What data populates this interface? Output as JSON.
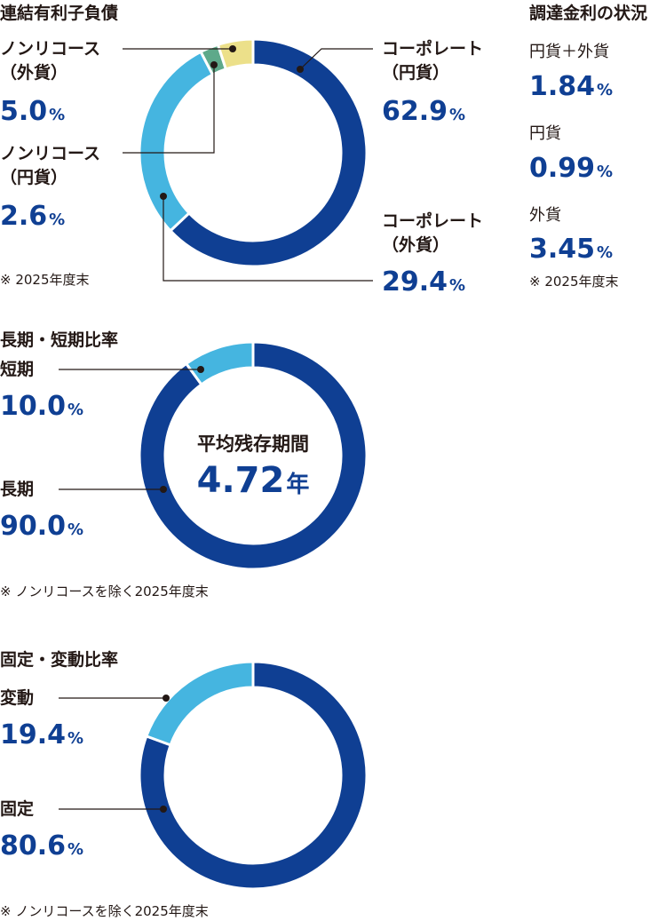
{
  "colors": {
    "navy": "#0F3F93",
    "lightblue": "#45B5E0",
    "green": "#5EA98A",
    "yellow": "#ECE08A"
  },
  "section1": {
    "title": "連結有利子負債",
    "note": "※ 2025年度末",
    "labels": {
      "nr_foreign": "ノンリコース\n（外貨）",
      "nr_foreign_value": "5.0",
      "nr_yen": "ノンリコース\n（円貨）",
      "nr_yen_value": "2.6",
      "corp_yen": "コーポレート\n（円貨）",
      "corp_yen_value": "62.9",
      "corp_foreign": "コーポレート\n（外貨）",
      "corp_foreign_value": "29.4",
      "unit": "%"
    }
  },
  "rates": {
    "title": "調達金利の状況",
    "items": [
      {
        "label": "円貨＋外貨",
        "value": "1.84",
        "unit": "%"
      },
      {
        "label": "円貨",
        "value": "0.99",
        "unit": "%"
      },
      {
        "label": "外貨",
        "value": "3.45",
        "unit": "%"
      }
    ],
    "note": "※ 2025年度末"
  },
  "section2": {
    "title": "長期・短期比率",
    "short_label": "短期",
    "short_value": "10.0",
    "long_label": "長期",
    "long_value": "90.0",
    "unit": "%",
    "center_title": "平均残存期間",
    "center_value": "4.72",
    "center_unit": "年",
    "note": "※ ノンリコースを除く2025年度末"
  },
  "section3": {
    "title": "固定・変動比率",
    "var_label": "変動",
    "var_value": "19.4",
    "fixed_label": "固定",
    "fixed_value": "80.6",
    "unit": "%",
    "note": "※ ノンリコースを除く2025年度末"
  },
  "chart_data": [
    {
      "type": "pie",
      "title": "連結有利子負債",
      "categories": [
        "コーポレート（円貨）",
        "コーポレート（外貨）",
        "ノンリコース（円貨）",
        "ノンリコース（外貨）"
      ],
      "values": [
        62.9,
        29.4,
        2.6,
        5.0
      ],
      "colors": [
        "#0F3F93",
        "#45B5E0",
        "#5EA98A",
        "#ECE08A"
      ]
    },
    {
      "type": "pie",
      "title": "長期・短期比率",
      "categories": [
        "長期",
        "短期"
      ],
      "values": [
        90.0,
        10.0
      ],
      "colors": [
        "#0F3F93",
        "#45B5E0"
      ]
    },
    {
      "type": "pie",
      "title": "固定・変動比率",
      "categories": [
        "固定",
        "変動"
      ],
      "values": [
        80.6,
        19.4
      ],
      "colors": [
        "#0F3F93",
        "#45B5E0"
      ]
    }
  ]
}
